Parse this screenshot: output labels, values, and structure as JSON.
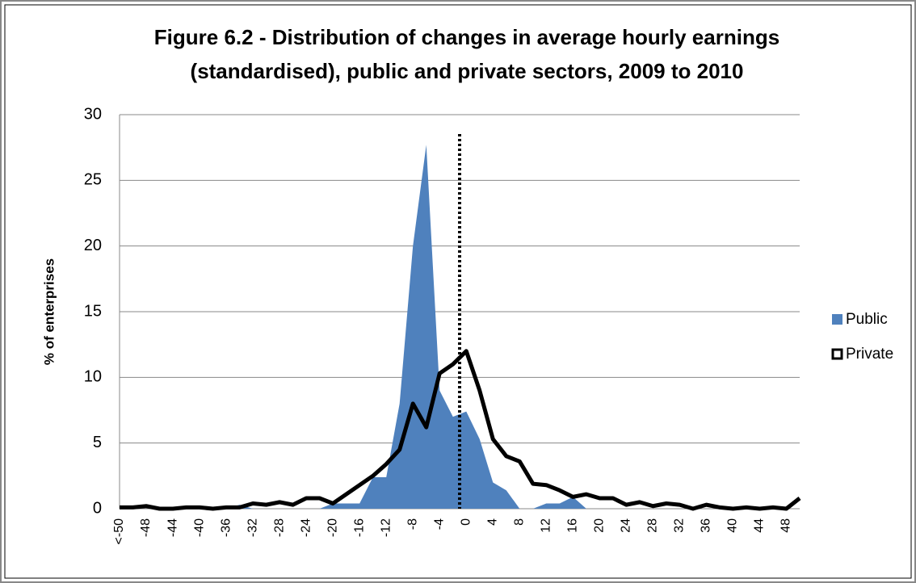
{
  "chart_data": {
    "type": "area-line",
    "title": "Figure 6.2 - Distribution of changes in average hourly earnings (standardised), public and private sectors, 2009 to 2010",
    "y_label": "% of enterprises",
    "categories": [
      "<-50",
      null,
      "-48",
      null,
      "-44",
      null,
      "-40",
      null,
      "-36",
      null,
      "-32",
      null,
      "-28",
      null,
      "-24",
      null,
      "-20",
      null,
      "-16",
      null,
      "-12",
      null,
      "-8",
      null,
      "-4",
      null,
      "0",
      null,
      "4",
      null,
      "8",
      null,
      "12",
      null,
      "16",
      null,
      "20",
      null,
      "24",
      null,
      "28",
      null,
      "32",
      null,
      "36",
      null,
      "40",
      null,
      "44",
      null,
      "48",
      null
    ],
    "series": [
      {
        "name": "Public",
        "color": "#4f81bd",
        "kind": "area",
        "values": [
          0,
          0,
          0,
          0,
          0,
          0,
          0,
          0,
          0,
          0.3,
          0,
          0,
          0,
          0,
          0,
          0,
          0.4,
          0.4,
          0.4,
          2.4,
          2.4,
          8,
          20,
          27.7,
          9,
          7,
          7.4,
          5.3,
          2,
          1.4,
          0,
          0,
          0.4,
          0.4,
          0.9,
          0,
          0,
          0,
          0,
          0,
          0,
          0,
          0,
          0,
          0,
          0,
          0,
          0,
          0,
          0,
          0,
          0
        ]
      },
      {
        "name": "Private",
        "color": "#000000",
        "kind": "line",
        "values": [
          0.1,
          0.1,
          0.2,
          0,
          0,
          0.1,
          0.1,
          0,
          0.1,
          0.1,
          0.4,
          0.3,
          0.5,
          0.3,
          0.8,
          0.8,
          0.4,
          1.1,
          1.8,
          2.5,
          3.4,
          4.5,
          8,
          6.2,
          10.3,
          11,
          12,
          9,
          5.3,
          4,
          3.6,
          1.9,
          1.8,
          1.4,
          0.9,
          1.1,
          0.8,
          0.8,
          0.3,
          0.5,
          0.2,
          0.4,
          0.3,
          0,
          0.3,
          0.1,
          0,
          0.1,
          0,
          0.1,
          0,
          0.8
        ]
      }
    ],
    "ylim": [
      0,
      30
    ],
    "yticks": [
      0,
      5,
      10,
      15,
      20,
      25,
      30
    ],
    "grid": true,
    "legend": "right"
  }
}
